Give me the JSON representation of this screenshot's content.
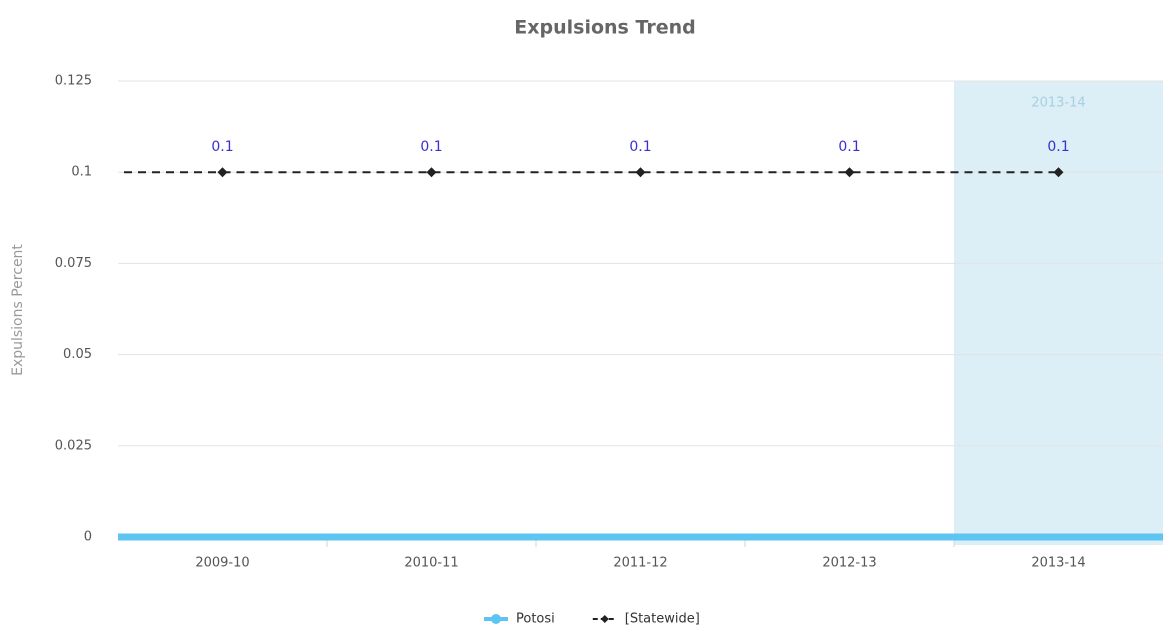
{
  "chart_data": {
    "type": "line",
    "title": "Expulsions Trend",
    "y_axis_label": "Expulsions Percent",
    "categories": [
      "2009-10",
      "2010-11",
      "2011-12",
      "2012-13",
      "2013-14"
    ],
    "series": [
      {
        "name": "Potosi",
        "color": "#5ec4f2",
        "values": [
          0,
          0,
          0,
          0,
          0
        ],
        "dashed": false,
        "markers": false,
        "data_labels": false
      },
      {
        "name": "[Statewide]",
        "color": "#222222",
        "values": [
          0.1,
          0.1,
          0.1,
          0.1,
          0.1
        ],
        "dashed": true,
        "markers": true,
        "data_labels": true
      }
    ],
    "ylim": [
      0,
      0.125
    ],
    "yticks": [
      0,
      0.025,
      0.05,
      0.075,
      0.1,
      0.125
    ],
    "grid": true,
    "plot_band": {
      "label": "2013-14",
      "color": "#dceef6"
    },
    "legend": "bottom"
  }
}
